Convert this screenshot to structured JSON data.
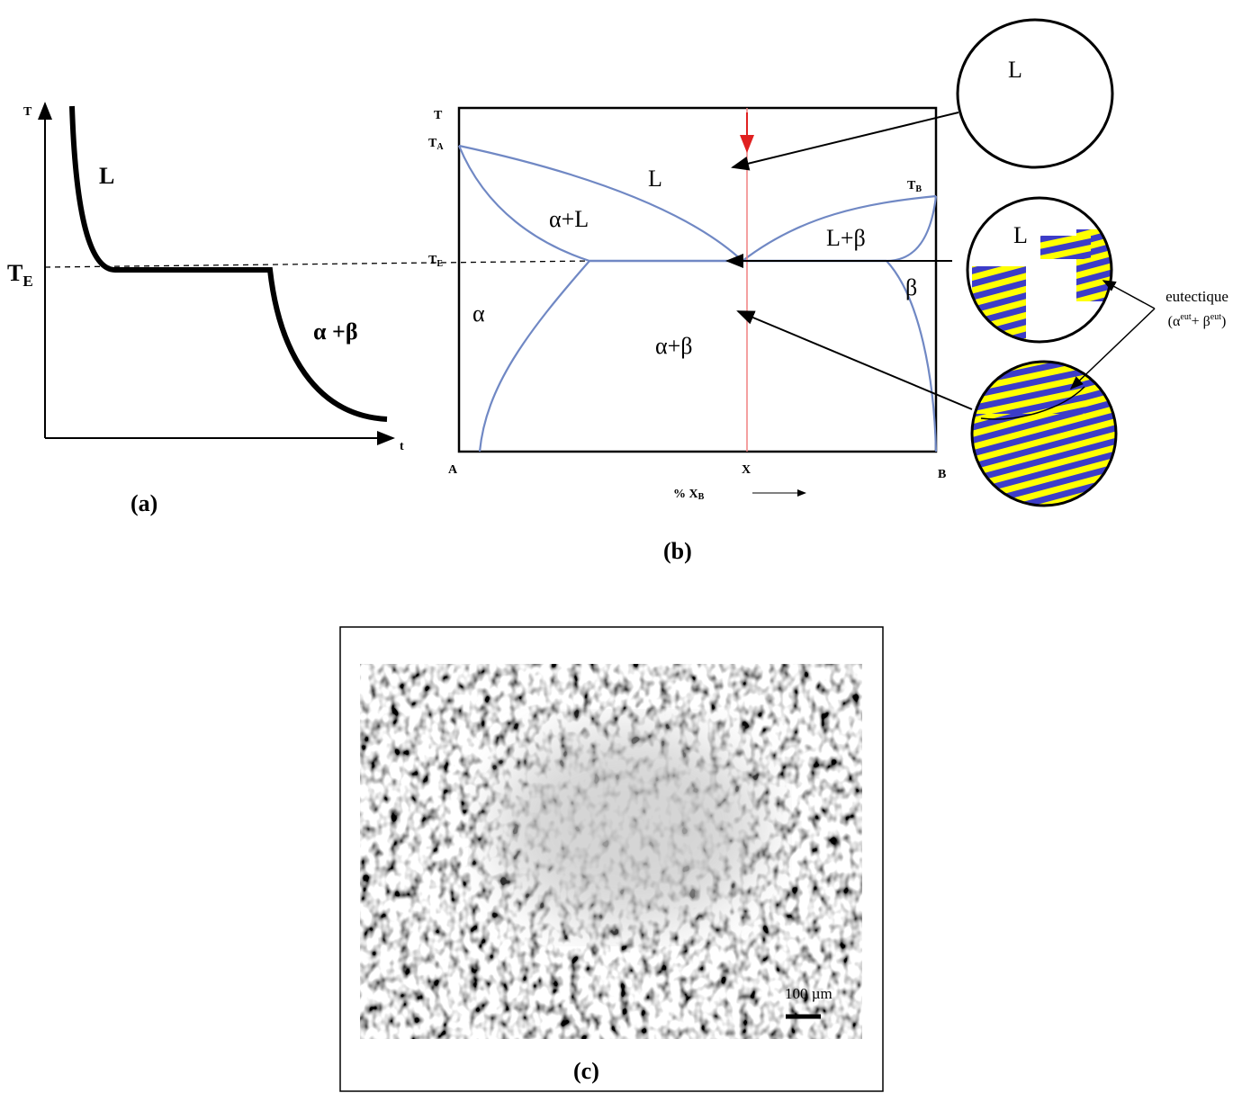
{
  "panel_a": {
    "y_axis": "T",
    "x_axis": "t",
    "liquid_label": "L",
    "te_label": {
      "main": "T",
      "sub": "E"
    },
    "solid_label": "α +β",
    "caption": "(a)"
  },
  "panel_b": {
    "y_axis": "T",
    "ta_label": {
      "main": "T",
      "sub": "A"
    },
    "tb_label": {
      "main": "T",
      "sub": "B"
    },
    "te_label": {
      "main": "T",
      "sub": "E"
    },
    "regions": {
      "liquid": "L",
      "alpha_liquid": "α+L",
      "liquid_beta": "L+β",
      "alpha": "α",
      "alpha_beta": "α+β",
      "beta": "β"
    },
    "x_ends": {
      "left": "A",
      "composition": "X",
      "right": "B"
    },
    "x_axis": {
      "main": "% X",
      "sub": "B"
    },
    "caption": "(b)"
  },
  "circles": {
    "top_label": "L",
    "middle_label": "L",
    "eutectic_title": "eutectique",
    "eutectic_formula": [
      "(α",
      "eut",
      "+ β",
      "eut",
      ")"
    ]
  },
  "panel_c": {
    "scale_bar": "100 µm",
    "caption": "(c)"
  }
}
